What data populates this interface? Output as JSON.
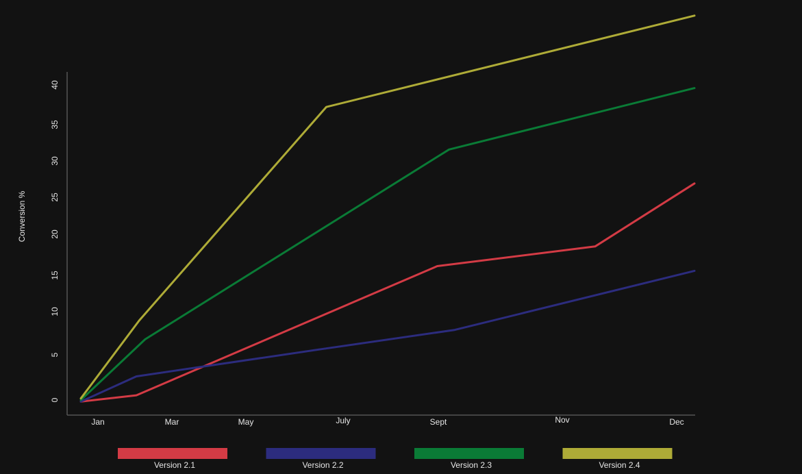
{
  "chart_data": {
    "type": "line",
    "ylabel": "Conversion %",
    "ylim": [
      0,
      40
    ],
    "y_ticks": [
      "0",
      "5",
      "10",
      "15",
      "20",
      "25",
      "30",
      "35",
      "40"
    ],
    "x_tick_labels": [
      "Jan",
      "Mar",
      "May",
      "July",
      "Sept",
      "Nov",
      "Dec"
    ],
    "series": [
      {
        "name": "Version 2.1",
        "color": "#d33b45",
        "points": [
          [
            0,
            -0.2
          ],
          [
            1.9,
            0.6
          ],
          [
            12.2,
            17
          ],
          [
            17.6,
            19.5
          ],
          [
            21,
            27.5
          ]
        ]
      },
      {
        "name": "Version 2.2",
        "color": "#2c2c7e",
        "points": [
          [
            0,
            -0.2
          ],
          [
            1.9,
            3.0
          ],
          [
            8.3,
            6.5
          ],
          [
            12.8,
            8.9
          ],
          [
            21,
            16.4
          ]
        ]
      },
      {
        "name": "Version 2.3",
        "color": "#0a7b36",
        "points": [
          [
            0,
            0
          ],
          [
            2.2,
            7.7
          ],
          [
            12.6,
            31.8
          ],
          [
            21,
            39.6
          ]
        ]
      },
      {
        "name": "Version 2.4",
        "color": "#aeab37",
        "points": [
          [
            0,
            0.2
          ],
          [
            2.0,
            10.1
          ],
          [
            8.4,
            37.2
          ],
          [
            21,
            48.8
          ]
        ]
      }
    ],
    "legend_position": "bottom",
    "grid": false
  }
}
